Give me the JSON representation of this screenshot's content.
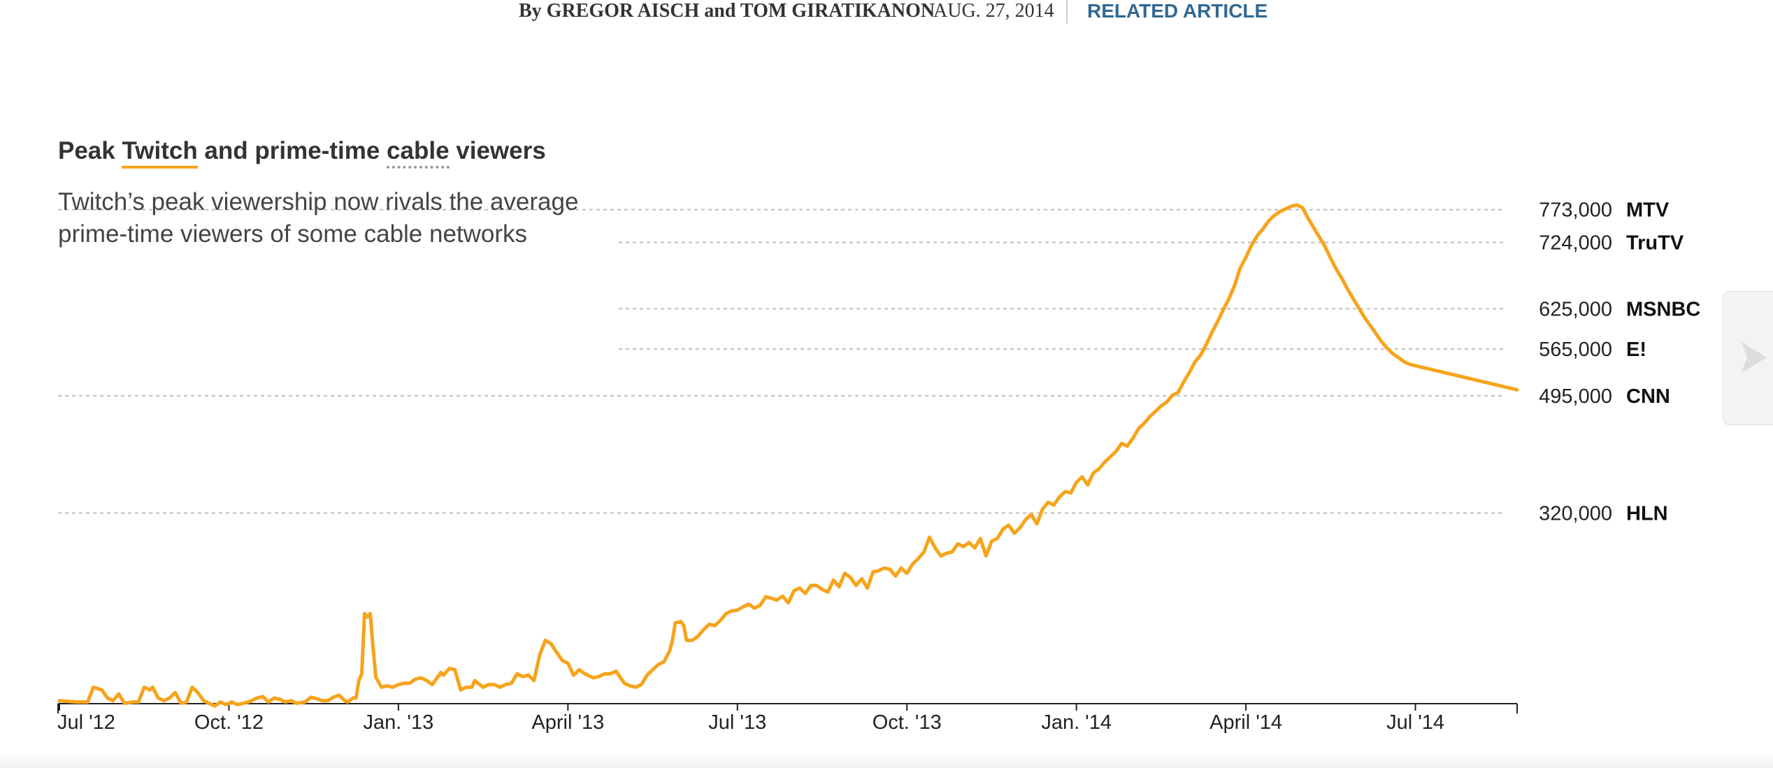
{
  "byline": {
    "authors": "By GREGOR AISCH and TOM GIRATIKANON",
    "date": "AUG. 27, 2014",
    "related": "RELATED ARTICLE"
  },
  "colors": {
    "line": "#f6a41c",
    "grid": "#bdbdbd",
    "link": "#326891"
  },
  "chart_data": {
    "type": "line",
    "title_parts": [
      "Peak ",
      "Twitch",
      " and prime-time ",
      "cable",
      " viewers"
    ],
    "subtitle": "Twitch’s peak viewership now rivals the average prime-time viewers of some cable networks",
    "x_ticks": [
      {
        "label": "Jul '12",
        "t": 0
      },
      {
        "label": "Oct. '12",
        "t": 3
      },
      {
        "label": "Jan. '13",
        "t": 6
      },
      {
        "label": "April '13",
        "t": 9
      },
      {
        "label": "Jul '13",
        "t": 12
      },
      {
        "label": "Oct. '13",
        "t": 15
      },
      {
        "label": "Jan. '14",
        "t": 18
      },
      {
        "label": "April '14",
        "t": 21
      },
      {
        "label": "Jul '14",
        "t": 24
      }
    ],
    "x_range": [
      0,
      25.8
    ],
    "y_range": [
      0,
      800000
    ],
    "reference_lines": [
      {
        "network": "MTV",
        "value": 773000,
        "value_label": "773,000",
        "full_width": true
      },
      {
        "network": "TruTV",
        "value": 724000,
        "value_label": "724,000",
        "full_width": false
      },
      {
        "network": "MSNBC",
        "value": 625000,
        "value_label": "625,000",
        "full_width": false
      },
      {
        "network": "E!",
        "value": 565000,
        "value_label": "565,000",
        "full_width": false
      },
      {
        "network": "CNN",
        "value": 495000,
        "value_label": "495,000",
        "full_width": true
      },
      {
        "network": "HLN",
        "value": 320000,
        "value_label": "320,000",
        "full_width": true
      }
    ],
    "series": [
      {
        "name": "Twitch peak viewers",
        "points": [
          [
            0.0,
            40000
          ],
          [
            0.3,
            38000
          ],
          [
            0.5,
            38000
          ],
          [
            0.6,
            60000
          ],
          [
            0.75,
            56000
          ],
          [
            0.85,
            44000
          ],
          [
            0.95,
            40000
          ],
          [
            1.05,
            50000
          ],
          [
            1.15,
            36000
          ],
          [
            1.3,
            38000
          ],
          [
            1.4,
            38000
          ],
          [
            1.5,
            60000
          ],
          [
            1.6,
            56000
          ],
          [
            1.65,
            60000
          ],
          [
            1.75,
            44000
          ],
          [
            1.85,
            40000
          ],
          [
            1.95,
            44000
          ],
          [
            2.05,
            52000
          ],
          [
            2.15,
            36000
          ],
          [
            2.25,
            38000
          ],
          [
            2.35,
            60000
          ],
          [
            2.45,
            52000
          ],
          [
            2.55,
            40000
          ],
          [
            2.65,
            36000
          ],
          [
            2.75,
            32000
          ],
          [
            2.85,
            38000
          ],
          [
            2.95,
            34000
          ],
          [
            3.05,
            38000
          ],
          [
            3.15,
            34000
          ],
          [
            3.25,
            36000
          ],
          [
            3.35,
            38000
          ],
          [
            3.5,
            44000
          ],
          [
            3.6,
            46000
          ],
          [
            3.7,
            38000
          ],
          [
            3.8,
            44000
          ],
          [
            3.9,
            42000
          ],
          [
            4.0,
            38000
          ],
          [
            4.1,
            40000
          ],
          [
            4.2,
            36000
          ],
          [
            4.35,
            38000
          ],
          [
            4.45,
            45000
          ],
          [
            4.55,
            43000
          ],
          [
            4.65,
            40000
          ],
          [
            4.75,
            40000
          ],
          [
            4.85,
            45000
          ],
          [
            4.95,
            48000
          ],
          [
            5.05,
            40000
          ],
          [
            5.1,
            38000
          ],
          [
            5.2,
            44000
          ],
          [
            5.25,
            44000
          ],
          [
            5.3,
            70000
          ],
          [
            5.35,
            80000
          ],
          [
            5.4,
            170000
          ],
          [
            5.45,
            165000
          ],
          [
            5.5,
            170000
          ],
          [
            5.55,
            120000
          ],
          [
            5.6,
            75000
          ],
          [
            5.7,
            60000
          ],
          [
            5.8,
            62000
          ],
          [
            5.9,
            60000
          ],
          [
            6.0,
            64000
          ],
          [
            6.1,
            66000
          ],
          [
            6.2,
            66000
          ],
          [
            6.3,
            72000
          ],
          [
            6.4,
            74000
          ],
          [
            6.5,
            70000
          ],
          [
            6.6,
            64000
          ],
          [
            6.75,
            82000
          ],
          [
            6.8,
            78000
          ],
          [
            6.9,
            88000
          ],
          [
            7.0,
            86000
          ],
          [
            7.1,
            56000
          ],
          [
            7.2,
            60000
          ],
          [
            7.3,
            60000
          ],
          [
            7.35,
            70000
          ],
          [
            7.5,
            60000
          ],
          [
            7.6,
            64000
          ],
          [
            7.7,
            64000
          ],
          [
            7.8,
            60000
          ],
          [
            7.9,
            64000
          ],
          [
            8.0,
            66000
          ],
          [
            8.1,
            80000
          ],
          [
            8.2,
            76000
          ],
          [
            8.3,
            78000
          ],
          [
            8.4,
            70000
          ],
          [
            8.5,
            108000
          ],
          [
            8.6,
            130000
          ],
          [
            8.7,
            125000
          ],
          [
            8.8,
            112000
          ],
          [
            8.9,
            100000
          ],
          [
            9.0,
            96000
          ],
          [
            9.1,
            78000
          ],
          [
            9.2,
            86000
          ],
          [
            9.3,
            80000
          ],
          [
            9.45,
            74000
          ],
          [
            9.55,
            76000
          ],
          [
            9.65,
            80000
          ],
          [
            9.75,
            80000
          ],
          [
            9.85,
            84000
          ],
          [
            10.0,
            66000
          ],
          [
            10.1,
            62000
          ],
          [
            10.2,
            60000
          ],
          [
            10.3,
            64000
          ],
          [
            10.4,
            78000
          ],
          [
            10.5,
            86000
          ],
          [
            10.6,
            94000
          ],
          [
            10.7,
            98000
          ],
          [
            10.8,
            114000
          ],
          [
            10.85,
            130000
          ],
          [
            10.9,
            156000
          ],
          [
            11.0,
            158000
          ],
          [
            11.05,
            152000
          ],
          [
            11.1,
            130000
          ],
          [
            11.2,
            130000
          ],
          [
            11.3,
            136000
          ],
          [
            11.4,
            146000
          ],
          [
            11.5,
            154000
          ],
          [
            11.6,
            152000
          ],
          [
            11.7,
            160000
          ],
          [
            11.8,
            170000
          ],
          [
            11.9,
            174000
          ],
          [
            12.0,
            175000
          ],
          [
            12.1,
            180000
          ],
          [
            12.2,
            184000
          ],
          [
            12.3,
            178000
          ],
          [
            12.4,
            182000
          ],
          [
            12.5,
            195000
          ],
          [
            12.6,
            193000
          ],
          [
            12.7,
            190000
          ],
          [
            12.8,
            196000
          ],
          [
            12.9,
            186000
          ],
          [
            13.0,
            204000
          ],
          [
            13.1,
            208000
          ],
          [
            13.2,
            200000
          ],
          [
            13.3,
            212000
          ],
          [
            13.4,
            212000
          ],
          [
            13.5,
            206000
          ],
          [
            13.6,
            202000
          ],
          [
            13.7,
            220000
          ],
          [
            13.8,
            210000
          ],
          [
            13.9,
            230000
          ],
          [
            14.0,
            224000
          ],
          [
            14.1,
            212000
          ],
          [
            14.2,
            222000
          ],
          [
            14.3,
            208000
          ],
          [
            14.4,
            232000
          ],
          [
            14.5,
            234000
          ],
          [
            14.6,
            238000
          ],
          [
            14.7,
            236000
          ],
          [
            14.8,
            226000
          ],
          [
            14.9,
            238000
          ],
          [
            15.0,
            230000
          ],
          [
            15.1,
            244000
          ],
          [
            15.2,
            252000
          ],
          [
            15.3,
            262000
          ],
          [
            15.4,
            284000
          ],
          [
            15.5,
            268000
          ],
          [
            15.6,
            256000
          ],
          [
            15.7,
            260000
          ],
          [
            15.8,
            262000
          ],
          [
            15.9,
            274000
          ],
          [
            16.0,
            270000
          ],
          [
            16.1,
            276000
          ],
          [
            16.2,
            268000
          ],
          [
            16.3,
            282000
          ],
          [
            16.4,
            256000
          ],
          [
            16.5,
            278000
          ],
          [
            16.6,
            282000
          ],
          [
            16.7,
            296000
          ],
          [
            16.8,
            302000
          ],
          [
            16.9,
            290000
          ],
          [
            17.0,
            298000
          ],
          [
            17.1,
            310000
          ],
          [
            17.2,
            318000
          ],
          [
            17.3,
            304000
          ],
          [
            17.4,
            326000
          ],
          [
            17.5,
            336000
          ],
          [
            17.6,
            332000
          ],
          [
            17.7,
            344000
          ],
          [
            17.8,
            352000
          ],
          [
            17.9,
            350000
          ],
          [
            18.0,
            366000
          ],
          [
            18.1,
            374000
          ],
          [
            18.2,
            362000
          ],
          [
            18.3,
            380000
          ],
          [
            18.4,
            386000
          ],
          [
            18.5,
            396000
          ],
          [
            18.6,
            404000
          ],
          [
            18.7,
            412000
          ],
          [
            18.8,
            424000
          ],
          [
            18.9,
            420000
          ],
          [
            19.0,
            432000
          ],
          [
            19.1,
            446000
          ],
          [
            19.2,
            454000
          ],
          [
            19.3,
            464000
          ],
          [
            19.4,
            472000
          ],
          [
            19.5,
            480000
          ],
          [
            19.6,
            486000
          ],
          [
            19.7,
            496000
          ],
          [
            19.8,
            500000
          ],
          [
            19.9,
            516000
          ],
          [
            20.0,
            530000
          ],
          [
            20.1,
            546000
          ],
          [
            20.2,
            556000
          ],
          [
            20.3,
            572000
          ],
          [
            20.4,
            590000
          ],
          [
            20.5,
            606000
          ],
          [
            20.6,
            624000
          ],
          [
            20.7,
            640000
          ],
          [
            20.8,
            660000
          ],
          [
            20.9,
            686000
          ],
          [
            21.0,
            702000
          ],
          [
            21.1,
            720000
          ],
          [
            21.2,
            734000
          ],
          [
            21.3,
            744000
          ],
          [
            21.4,
            756000
          ],
          [
            21.5,
            764000
          ],
          [
            21.6,
            770000
          ],
          [
            21.7,
            774000
          ],
          [
            21.8,
            778000
          ],
          [
            21.9,
            780000
          ],
          [
            22.0,
            776000
          ],
          [
            22.1,
            760000
          ],
          [
            22.2,
            746000
          ],
          [
            22.3,
            732000
          ],
          [
            22.4,
            718000
          ],
          [
            22.5,
            700000
          ],
          [
            22.6,
            684000
          ],
          [
            22.7,
            670000
          ],
          [
            22.8,
            654000
          ],
          [
            22.9,
            640000
          ],
          [
            23.0,
            626000
          ],
          [
            23.1,
            612000
          ],
          [
            23.2,
            600000
          ],
          [
            23.3,
            588000
          ],
          [
            23.4,
            576000
          ],
          [
            23.5,
            566000
          ],
          [
            23.6,
            558000
          ],
          [
            23.7,
            552000
          ],
          [
            23.8,
            546000
          ],
          [
            23.9,
            542000
          ],
          [
            24.0,
            540000
          ],
          [
            24.1,
            538000
          ],
          [
            24.2,
            536000
          ],
          [
            24.3,
            534000
          ],
          [
            24.4,
            532000
          ],
          [
            24.5,
            530000
          ],
          [
            24.6,
            528000
          ],
          [
            24.7,
            526000
          ],
          [
            24.8,
            524000
          ],
          [
            24.9,
            522000
          ],
          [
            25.0,
            520000
          ],
          [
            25.1,
            518000
          ],
          [
            25.2,
            516000
          ],
          [
            25.3,
            514000
          ],
          [
            25.4,
            512000
          ],
          [
            25.5,
            510000
          ],
          [
            25.6,
            508000
          ],
          [
            25.7,
            506000
          ],
          [
            25.8,
            504000
          ]
        ]
      }
    ]
  }
}
